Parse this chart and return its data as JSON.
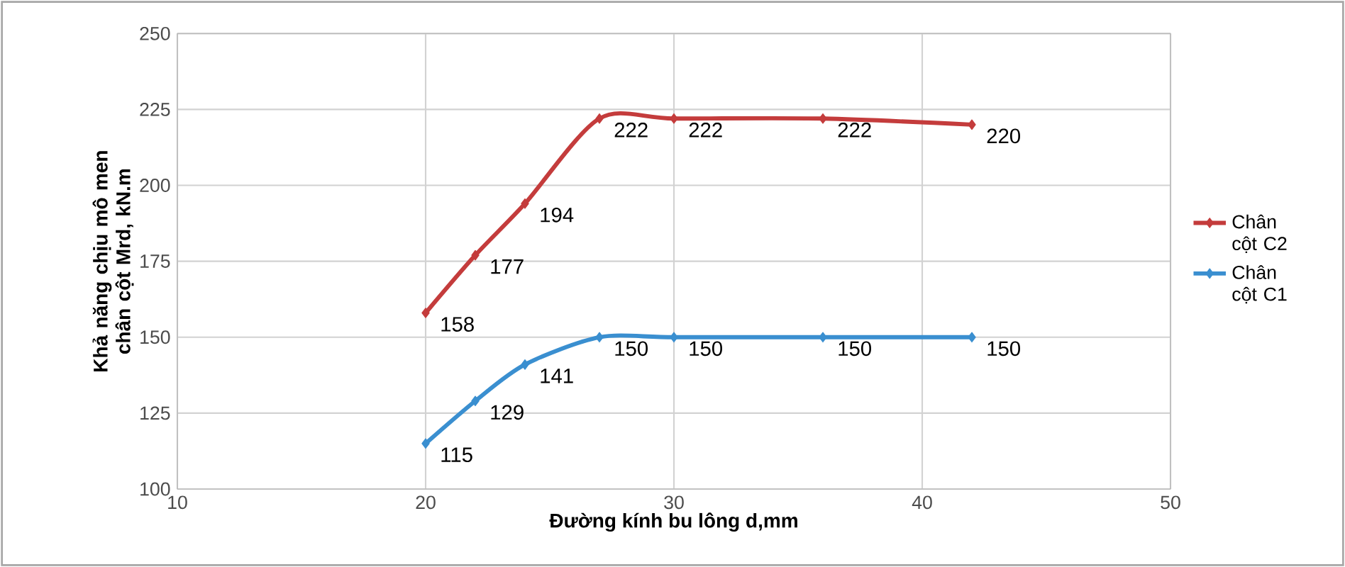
{
  "chart_data": {
    "type": "line",
    "xlabel": "Đường kính bu lông d,mm",
    "ylabel": "Khả năng chịu mô men chân cột Mrd, kN.m",
    "x": [
      20,
      22,
      24,
      27,
      30,
      36,
      42
    ],
    "series": [
      {
        "name": "Chân cột C2",
        "color": "#c43c3c",
        "values": [
          158,
          177,
          194,
          222,
          222,
          222,
          220
        ]
      },
      {
        "name": "Chân cột C1",
        "color": "#3a8fd0",
        "values": [
          115,
          129,
          141,
          150,
          150,
          150,
          150
        ]
      }
    ],
    "xlim": [
      10,
      50
    ],
    "xticks": [
      10,
      20,
      30,
      40,
      50
    ],
    "ylim": [
      100,
      250
    ],
    "yticks": [
      100,
      125,
      150,
      175,
      200,
      225,
      250
    ],
    "grid": true,
    "legend": "right",
    "marker": "diamond",
    "data_labels": true
  }
}
